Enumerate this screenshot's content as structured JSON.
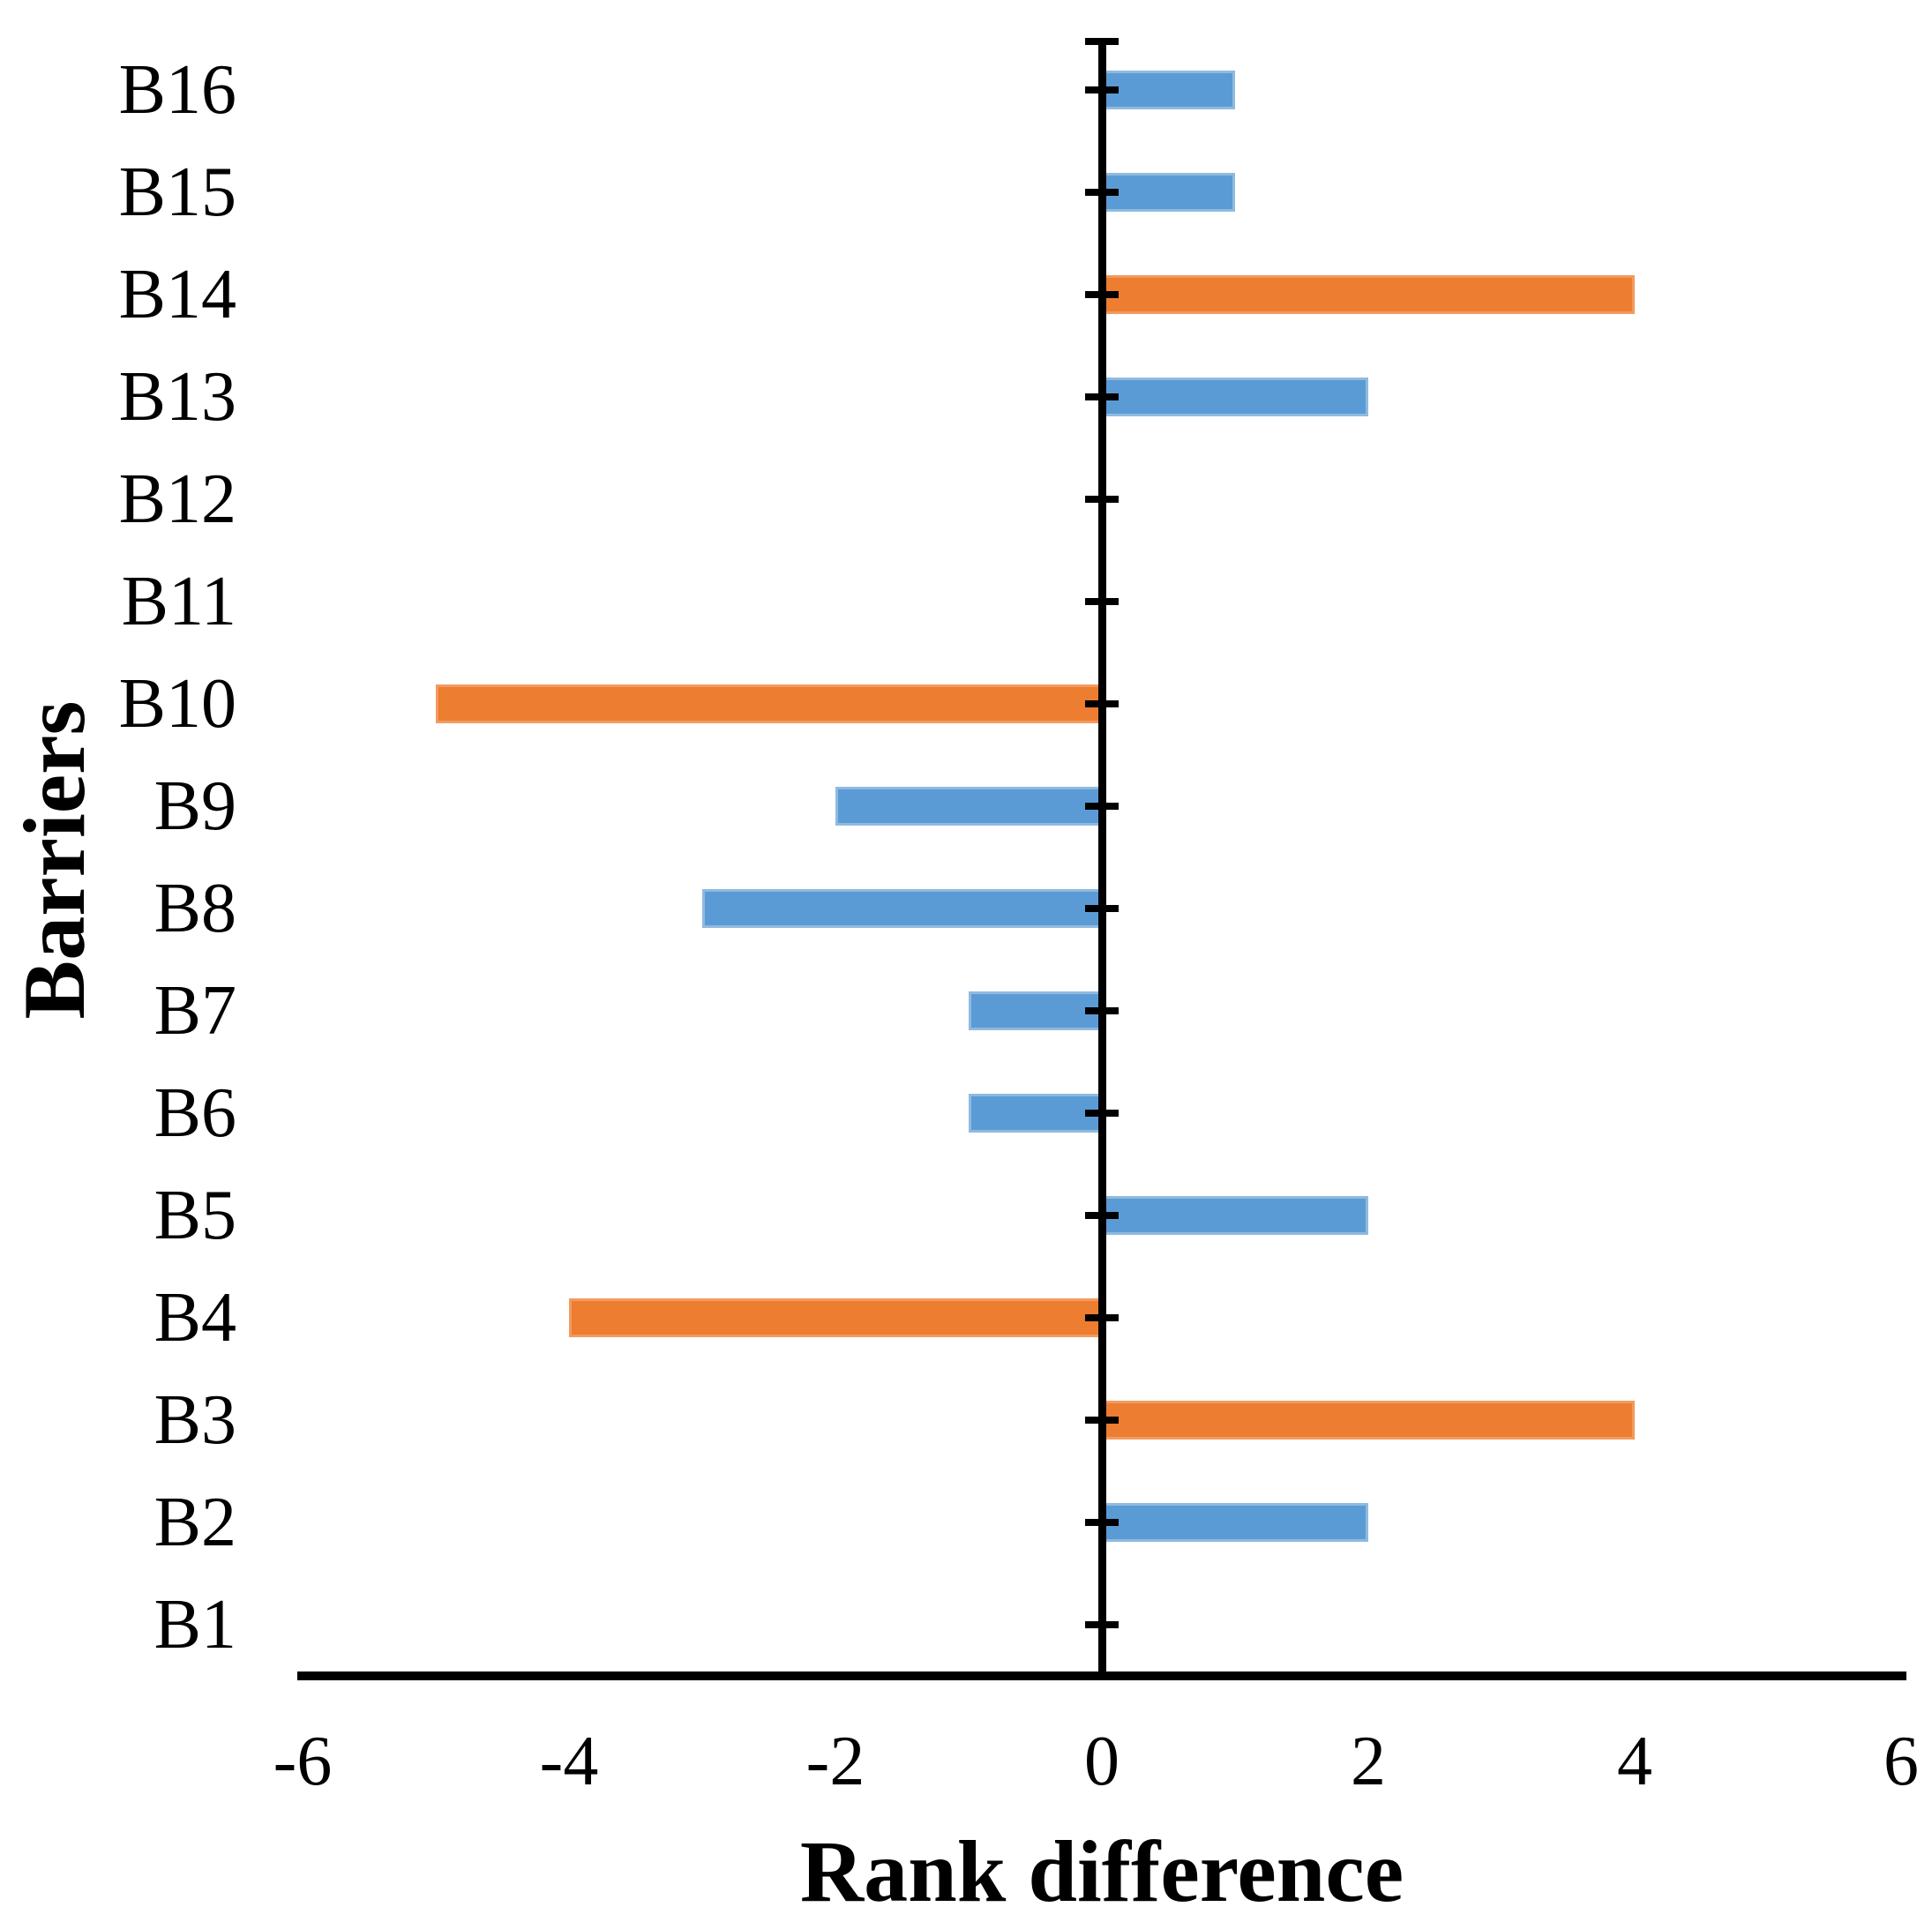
{
  "chart_data": {
    "type": "bar",
    "orientation": "horizontal",
    "title": "",
    "xlabel": "Rank difference",
    "ylabel": "Barriers",
    "xlim": [
      -6,
      6
    ],
    "xticks": [
      {
        "value": -6,
        "label": "-6"
      },
      {
        "value": -4,
        "label": "-4"
      },
      {
        "value": -2,
        "label": "-2"
      },
      {
        "value": 0,
        "label": "0"
      },
      {
        "value": 2,
        "label": "2"
      },
      {
        "value": 4,
        "label": "4"
      },
      {
        "value": 6,
        "label": "6"
      }
    ],
    "grid": false,
    "legend": false,
    "bars_top_to_bottom": [
      {
        "category": "B16",
        "value": 1,
        "color_key": "blue"
      },
      {
        "category": "B15",
        "value": 1,
        "color_key": "blue"
      },
      {
        "category": "B14",
        "value": 4,
        "color_key": "orange"
      },
      {
        "category": "B13",
        "value": 2,
        "color_key": "blue"
      },
      {
        "category": "B12",
        "value": 0,
        "color_key": "none"
      },
      {
        "category": "B11",
        "value": 0,
        "color_key": "none"
      },
      {
        "category": "B10",
        "value": -5,
        "color_key": "orange"
      },
      {
        "category": "B9",
        "value": -2,
        "color_key": "blue"
      },
      {
        "category": "B8",
        "value": -3,
        "color_key": "blue"
      },
      {
        "category": "B7",
        "value": -1,
        "color_key": "blue"
      },
      {
        "category": "B6",
        "value": -1,
        "color_key": "blue"
      },
      {
        "category": "B5",
        "value": 2,
        "color_key": "blue"
      },
      {
        "category": "B4",
        "value": -4,
        "color_key": "orange"
      },
      {
        "category": "B3",
        "value": 4,
        "color_key": "orange"
      },
      {
        "category": "B2",
        "value": 2,
        "color_key": "blue"
      },
      {
        "category": "B1",
        "value": 0,
        "color_key": "none"
      }
    ],
    "palette": {
      "blue": "#5B9BD5",
      "blue_edge": "#8FBADF",
      "orange": "#ED7D31",
      "orange_edge": "#F29A5F"
    },
    "axis_color": "#000000",
    "background": "#FFFFFF"
  }
}
